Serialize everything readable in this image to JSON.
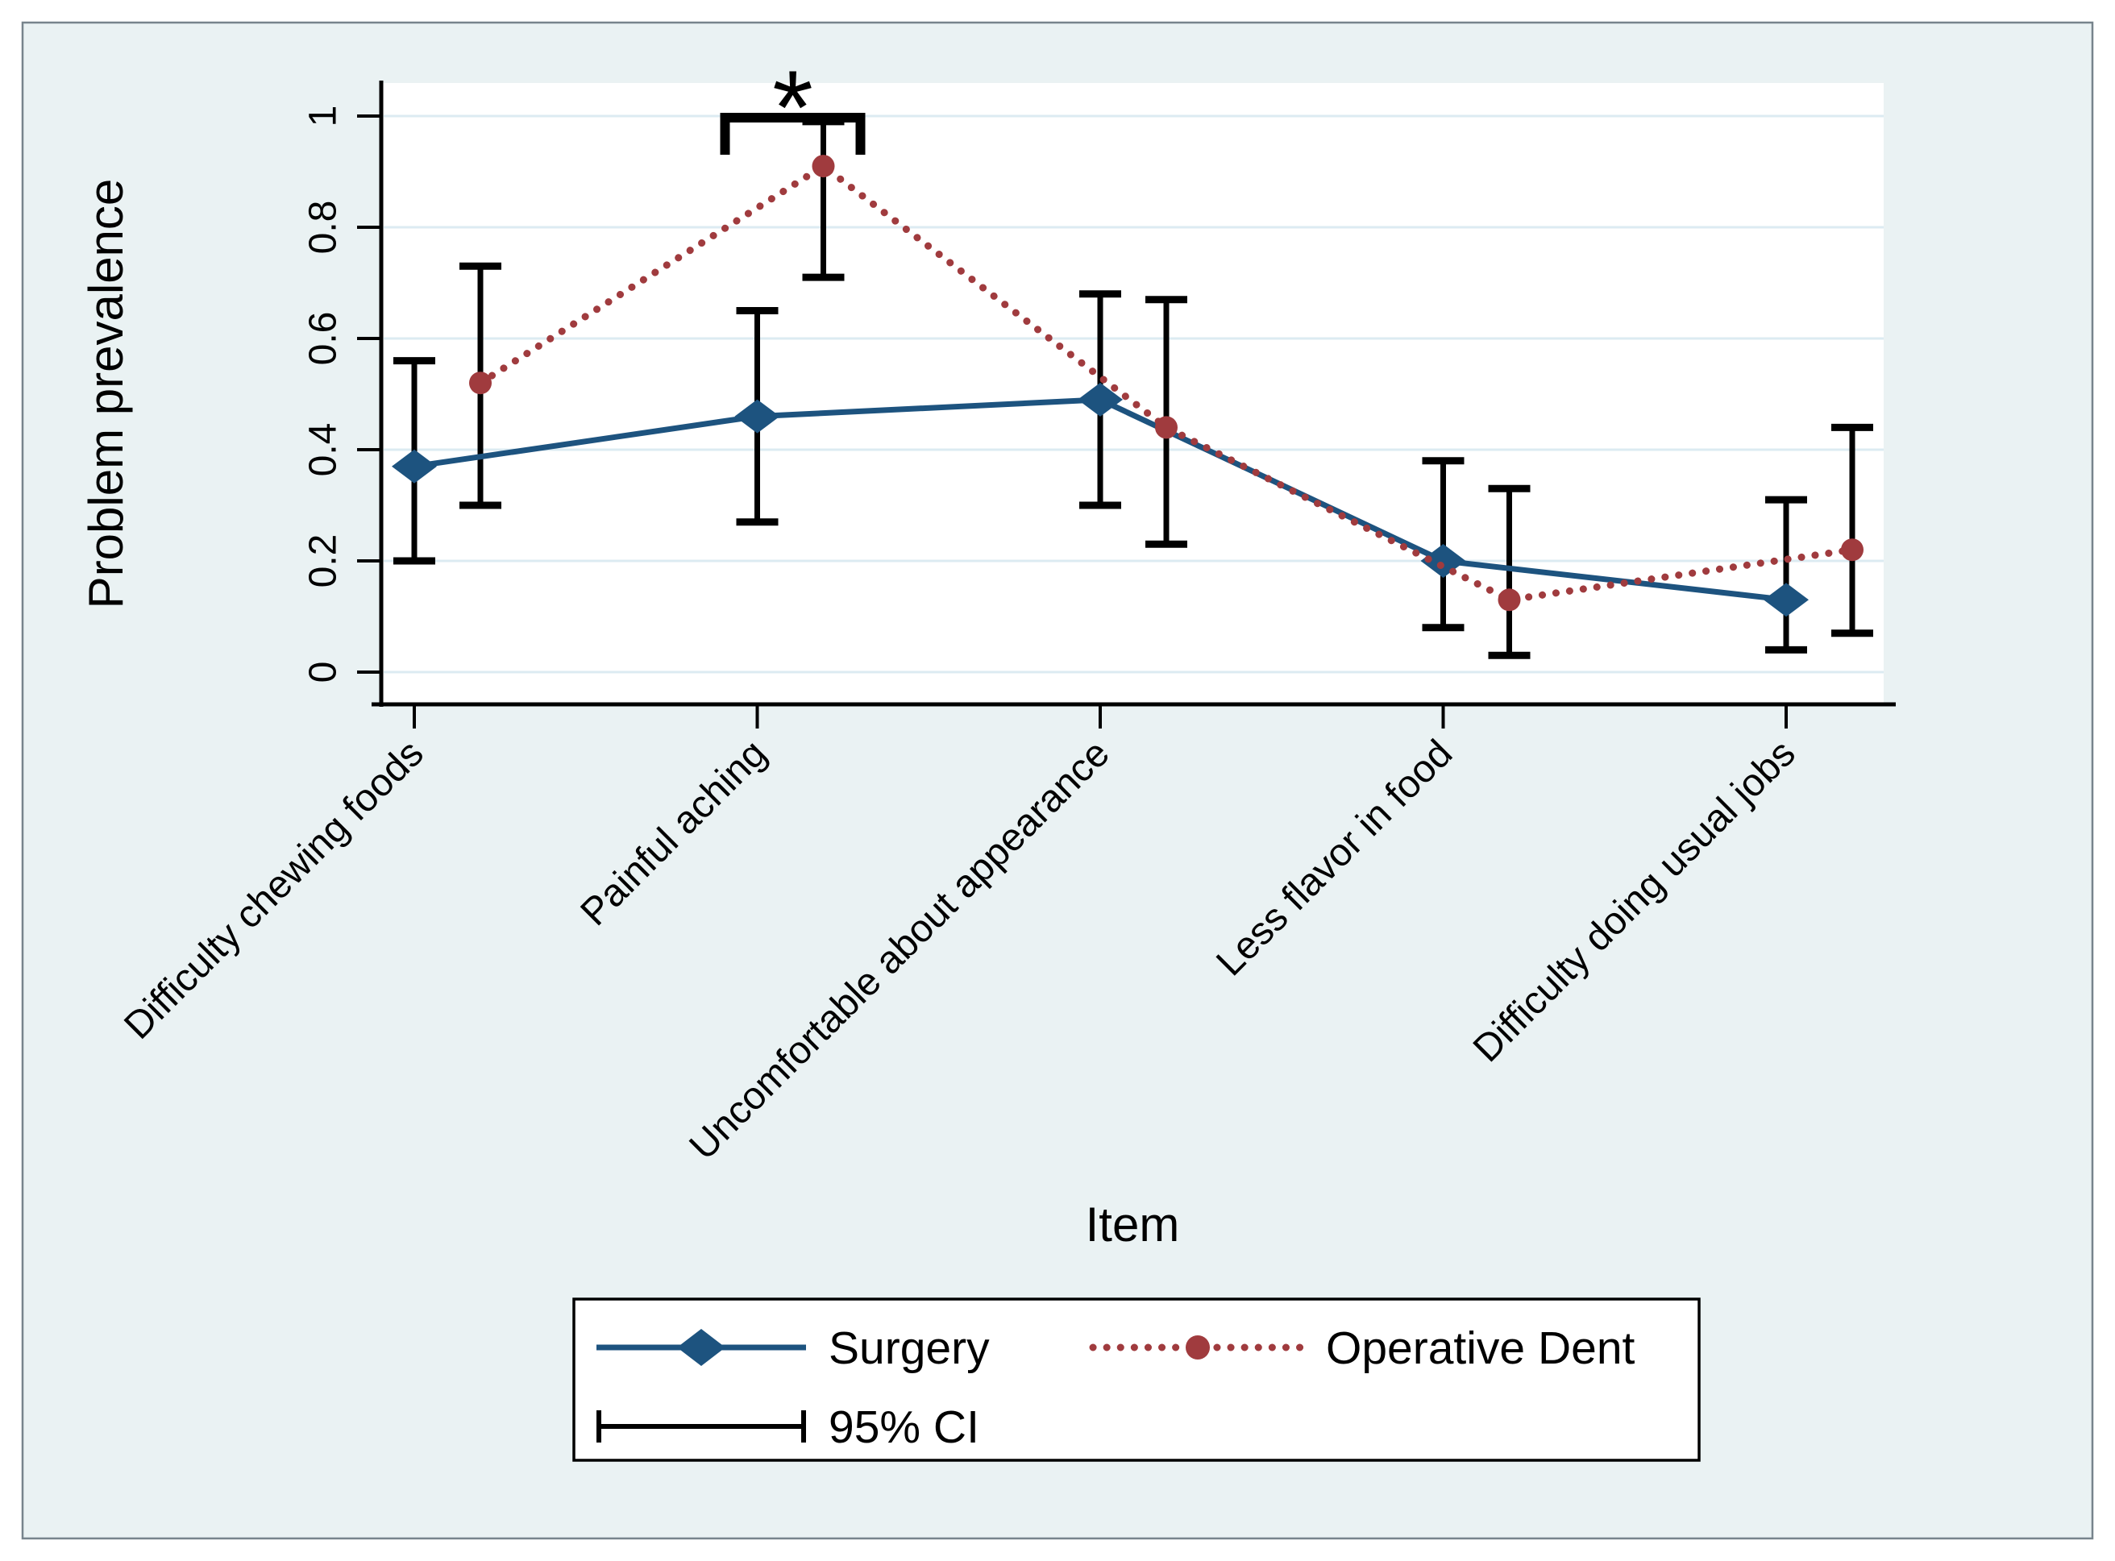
{
  "figure": {
    "background": "#eaf2f3",
    "plot_background": "#ffffff",
    "border_color": "#77848c",
    "grid_color": "#dcebf2",
    "axis_color": "#000000",
    "ci_color": "#000000"
  },
  "chart_data": {
    "type": "line",
    "title": "",
    "xlabel": "Item",
    "ylabel": "Problem prevalence",
    "ylim": [
      0,
      1
    ],
    "grid": true,
    "legend_position": "bottom",
    "yticks": [
      0,
      0.2,
      0.4,
      0.6,
      0.8,
      1
    ],
    "ytick_labels": [
      "0",
      "0.2",
      "0.4",
      "0.6",
      "0.8",
      "1"
    ],
    "categories": [
      "Difficulty chewing foods",
      "Painful aching",
      "Uncomfortable about appearance",
      "Less flavor in food",
      "Difficulty doing usual jobs"
    ],
    "series": [
      {
        "name": "Surgery",
        "color": "#1d537f",
        "line_style": "solid",
        "marker": "diamond",
        "values": [
          0.37,
          0.46,
          0.49,
          0.2,
          0.13
        ],
        "ci_low": [
          0.2,
          0.27,
          0.3,
          0.08,
          0.04
        ],
        "ci_high": [
          0.56,
          0.65,
          0.68,
          0.38,
          0.31
        ]
      },
      {
        "name": "Operative Dent",
        "color": "#a03b3e",
        "line_style": "dotted",
        "marker": "circle",
        "values": [
          0.52,
          0.91,
          0.44,
          0.13,
          0.22
        ],
        "ci_low": [
          0.3,
          0.71,
          0.23,
          0.03,
          0.07
        ],
        "ci_high": [
          0.73,
          0.99,
          0.67,
          0.33,
          0.44
        ]
      }
    ],
    "ci_label": "95% CI",
    "annotation": {
      "type": "significance-bracket",
      "symbol": "*",
      "category": "Painful aching",
      "series_span": [
        "Surgery",
        "Operative Dent"
      ]
    }
  }
}
